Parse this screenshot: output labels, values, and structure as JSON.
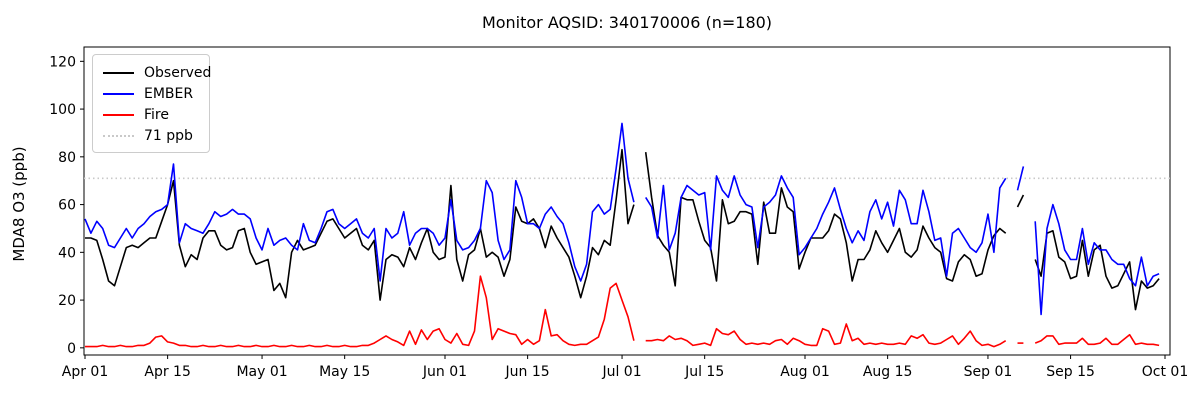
{
  "title": "Monitor AQSID: 340170006 (n=180)",
  "chart_data": {
    "type": "line",
    "title": "Monitor AQSID: 340170006 (n=180)",
    "xlabel": "",
    "ylabel": "MDA8 O3 (ppb)",
    "ylim": [
      -3,
      126
    ],
    "y_ticks": [
      0,
      20,
      40,
      60,
      80,
      100,
      120
    ],
    "x_tick_labels": [
      "Apr 01",
      "Apr 15",
      "May 01",
      "May 15",
      "Jun 01",
      "Jun 15",
      "Jul 01",
      "Jul 15",
      "Aug 01",
      "Aug 15",
      "Sep 01",
      "Sep 15",
      "Oct 01"
    ],
    "x_tick_day_index": [
      0,
      14,
      30,
      44,
      61,
      75,
      91,
      105,
      122,
      136,
      153,
      167,
      183
    ],
    "x_total_days": 183,
    "x_start_label": "Apr 01",
    "x_end_label": "Sep 30",
    "grid": false,
    "legend_position": "upper left",
    "background_color": "#ffffff",
    "axis_color": "#000000",
    "threshold": {
      "label": "71 ppb",
      "value": 71,
      "color": "#c9c9c9",
      "style": "dotted"
    },
    "series": [
      {
        "name": "Observed",
        "color": "#000000",
        "values": [
          46,
          46,
          45,
          37,
          28,
          26,
          34,
          42,
          43,
          42,
          44,
          46,
          46,
          53,
          60,
          70,
          43,
          34,
          39,
          37,
          46,
          49,
          49,
          43,
          41,
          42,
          49,
          50,
          40,
          35,
          36,
          37,
          24,
          27,
          21,
          40,
          45,
          41,
          42,
          43,
          48,
          53,
          54,
          50,
          46,
          48,
          50,
          43,
          41,
          45,
          20,
          37,
          39,
          38,
          34,
          42,
          37,
          44,
          50,
          40,
          37,
          38,
          68,
          37,
          28,
          39,
          41,
          50,
          38,
          40,
          38,
          30,
          37,
          59,
          53,
          52,
          54,
          50,
          42,
          51,
          46,
          42,
          38,
          30,
          21,
          30,
          42,
          39,
          45,
          43,
          62,
          83,
          52,
          60,
          null,
          82,
          63,
          47,
          43,
          40,
          26,
          63,
          62,
          62,
          53,
          45,
          42,
          28,
          62,
          52,
          53,
          57,
          57,
          56,
          35,
          61,
          48,
          48,
          67,
          59,
          57,
          33,
          40,
          46,
          46,
          46,
          49,
          56,
          54,
          44,
          28,
          37,
          37,
          41,
          49,
          44,
          40,
          45,
          50,
          40,
          38,
          41,
          51,
          46,
          42,
          40,
          29,
          28,
          36,
          39,
          37,
          30,
          31,
          41,
          47,
          50,
          48,
          null,
          59,
          64,
          null,
          37,
          30,
          48,
          49,
          38,
          36,
          29,
          30,
          45,
          30,
          41,
          43,
          30,
          25,
          26,
          31,
          36,
          16,
          28,
          25,
          26,
          29
        ]
      },
      {
        "name": "EMBER",
        "color": "#0000ff",
        "values": [
          54,
          48,
          53,
          50,
          43,
          42,
          46,
          50,
          46,
          50,
          52,
          55,
          57,
          58,
          60,
          77,
          44,
          52,
          50,
          49,
          48,
          52,
          57,
          55,
          56,
          58,
          56,
          56,
          54,
          46,
          41,
          50,
          43,
          45,
          46,
          43,
          41,
          52,
          45,
          44,
          50,
          57,
          58,
          52,
          50,
          52,
          54,
          48,
          46,
          50,
          28,
          50,
          46,
          48,
          57,
          43,
          48,
          50,
          50,
          48,
          43,
          46,
          62,
          45,
          41,
          42,
          45,
          50,
          70,
          65,
          45,
          37,
          41,
          70,
          63,
          52,
          52,
          50,
          56,
          59,
          55,
          52,
          44,
          34,
          28,
          35,
          57,
          60,
          56,
          58,
          75,
          94,
          71,
          61,
          null,
          63,
          59,
          46,
          68,
          41,
          48,
          63,
          68,
          66,
          64,
          65,
          41,
          72,
          66,
          63,
          72,
          64,
          60,
          59,
          42,
          59,
          61,
          64,
          72,
          67,
          63,
          39,
          42,
          46,
          50,
          56,
          61,
          67,
          58,
          50,
          44,
          49,
          45,
          57,
          62,
          54,
          61,
          51,
          66,
          62,
          52,
          52,
          66,
          57,
          45,
          46,
          30,
          48,
          50,
          46,
          42,
          40,
          44,
          56,
          40,
          67,
          71,
          null,
          66,
          76,
          null,
          53,
          14,
          50,
          60,
          52,
          41,
          37,
          37,
          50,
          35,
          44,
          41,
          41,
          37,
          35,
          35,
          29,
          26,
          38,
          26,
          30,
          31
        ]
      },
      {
        "name": "Fire",
        "color": "#ff0000",
        "values": [
          0.5,
          0.5,
          0.5,
          1,
          0.5,
          0.5,
          1,
          0.5,
          0.5,
          1,
          1,
          2,
          4.5,
          5,
          2.5,
          2,
          1,
          1,
          0.5,
          0.5,
          1,
          0.5,
          0.5,
          1,
          0.5,
          0.5,
          1,
          0.5,
          0.5,
          1,
          0.5,
          0.5,
          1,
          0.5,
          0.5,
          1,
          0.5,
          0.5,
          1,
          0.5,
          0.5,
          1,
          0.5,
          0.5,
          1,
          0.5,
          0.5,
          1,
          1,
          2,
          3.5,
          5,
          3.5,
          2.5,
          1,
          7,
          1.5,
          7.5,
          3.5,
          7,
          8,
          3.5,
          2,
          6,
          1.5,
          1,
          7,
          30,
          21,
          3.5,
          8,
          7,
          6,
          5.5,
          1.5,
          3.5,
          1.5,
          3,
          16,
          5,
          5.5,
          3,
          1.5,
          1,
          1.5,
          1.5,
          3,
          4.5,
          12,
          25,
          27,
          20,
          13,
          3,
          null,
          3,
          3,
          3.5,
          3,
          5,
          3.5,
          4,
          3,
          1,
          1.5,
          2,
          1,
          8,
          6,
          5.5,
          7,
          3.5,
          1.5,
          2,
          1.5,
          2,
          1.5,
          3,
          3.5,
          1.5,
          4,
          3,
          1.5,
          1,
          1,
          8,
          7,
          1.5,
          2,
          10,
          3,
          4,
          1.5,
          2,
          1.5,
          2,
          1.5,
          1.5,
          2,
          1.5,
          5,
          4,
          5.5,
          2,
          1.5,
          2,
          3.5,
          5,
          1.5,
          4,
          7,
          3,
          1,
          1.5,
          0.5,
          1.5,
          3,
          null,
          2,
          2,
          null,
          2,
          3,
          5,
          5,
          1.5,
          2,
          2,
          2,
          4,
          1.5,
          1.5,
          2,
          4,
          1.5,
          1.5,
          3.5,
          5.5,
          1.5,
          2,
          1.5,
          1.5,
          1
        ]
      }
    ]
  },
  "legend": {
    "items": [
      {
        "label": "Observed"
      },
      {
        "label": "EMBER"
      },
      {
        "label": "Fire"
      },
      {
        "label": "71 ppb"
      }
    ]
  }
}
